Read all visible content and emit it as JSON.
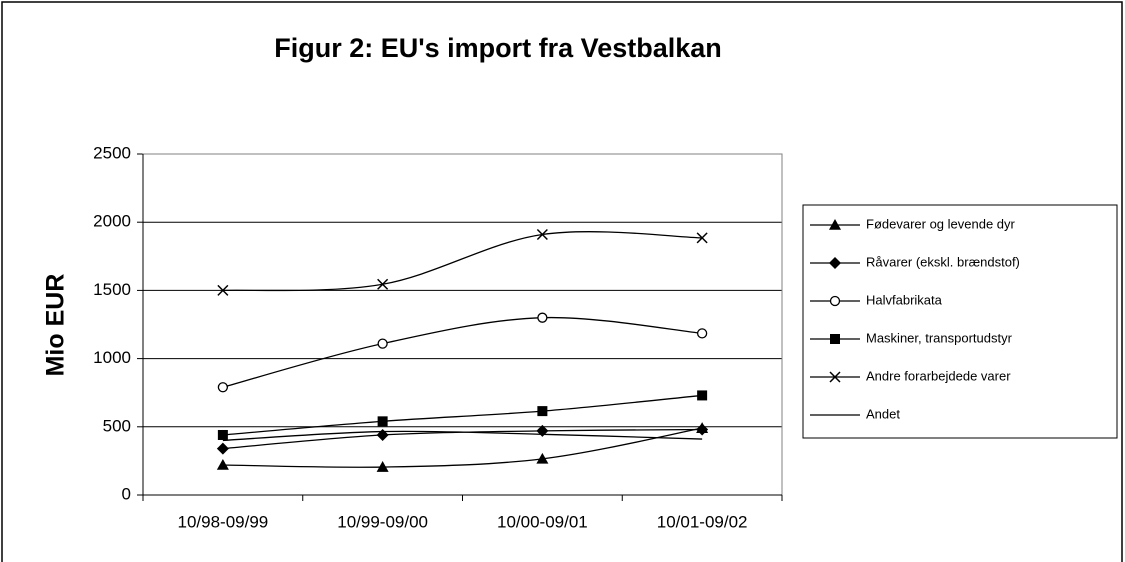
{
  "chart_data": {
    "type": "line",
    "title": "Figur 2: EU's import fra Vestbalkan",
    "y_label": "Mio EUR",
    "categories": [
      "10/98-09/99",
      "10/99-09/00",
      "10/00-09/01",
      "10/01-09/02"
    ],
    "series": [
      {
        "name": "Fødevarer og levende dyr",
        "color": "#000000",
        "marker": "triangle",
        "values": [
          220,
          205,
          265,
          490
        ]
      },
      {
        "name": "Råvarer (ekskl. brændstof)",
        "color": "#000000",
        "marker": "diamond",
        "values": [
          340,
          440,
          470,
          480
        ]
      },
      {
        "name": "Halvfabrikata",
        "color": "#000000",
        "marker": "circle",
        "values": [
          790,
          1110,
          1300,
          1185
        ]
      },
      {
        "name": "Maskiner, transportudstyr",
        "color": "#000000",
        "marker": "square",
        "values": [
          440,
          540,
          615,
          730
        ]
      },
      {
        "name": "Andre forarbejdede varer",
        "color": "#000000",
        "marker": "x",
        "values": [
          1500,
          1545,
          1910,
          1885
        ]
      },
      {
        "name": "Andet",
        "color": "#000000",
        "marker": "none",
        "values": [
          400,
          465,
          445,
          410
        ]
      }
    ],
    "ylim": [
      0,
      2500
    ],
    "yticks": [
      0,
      500,
      1000,
      1500,
      2000,
      2500
    ],
    "grid": true,
    "smooth": true,
    "legend": "right"
  }
}
